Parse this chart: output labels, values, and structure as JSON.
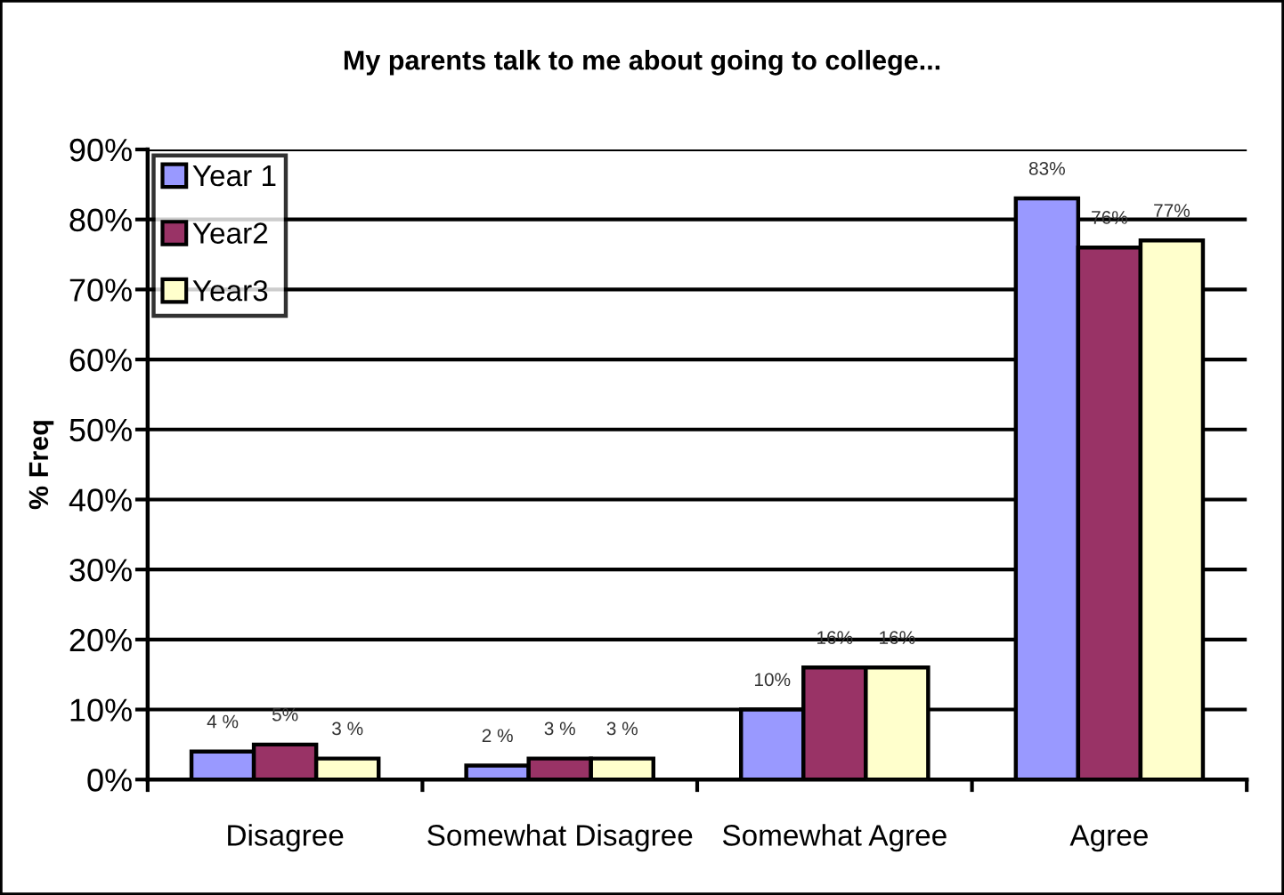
{
  "chart_data": {
    "type": "bar",
    "title": "My parents talk to me about going to college...",
    "ylabel": "% Freq",
    "categories": [
      "Disagree",
      "Somewhat Disagree",
      "Somewhat Agree",
      "Agree"
    ],
    "series": [
      {
        "name": "Year 1",
        "color": "#9999ff",
        "values": [
          4,
          2,
          10,
          83
        ],
        "value_labels": [
          "4 %",
          "2 %",
          "10%",
          "83%"
        ]
      },
      {
        "name": "Year2",
        "color": "#993366",
        "values": [
          5,
          3,
          16,
          76
        ],
        "value_labels": [
          "5%",
          "3 %",
          "16%",
          "76%"
        ]
      },
      {
        "name": "Year3",
        "color": "#ffffcc",
        "values": [
          3,
          3,
          16,
          77
        ],
        "value_labels": [
          "3 %",
          "3 %",
          "16%",
          "77%"
        ]
      }
    ],
    "ylim": [
      0,
      90
    ],
    "yticks": [
      {
        "value": 0,
        "label": "0%"
      },
      {
        "value": 10,
        "label": "10%"
      },
      {
        "value": 20,
        "label": "20%"
      },
      {
        "value": 30,
        "label": "30%"
      },
      {
        "value": 40,
        "label": "40%"
      },
      {
        "value": 50,
        "label": "50%"
      },
      {
        "value": 60,
        "label": "60%"
      },
      {
        "value": 70,
        "label": "70%"
      },
      {
        "value": 80,
        "label": "80%"
      },
      {
        "value": 90,
        "label": "90%"
      }
    ],
    "grid": "y",
    "legend": "top left"
  }
}
